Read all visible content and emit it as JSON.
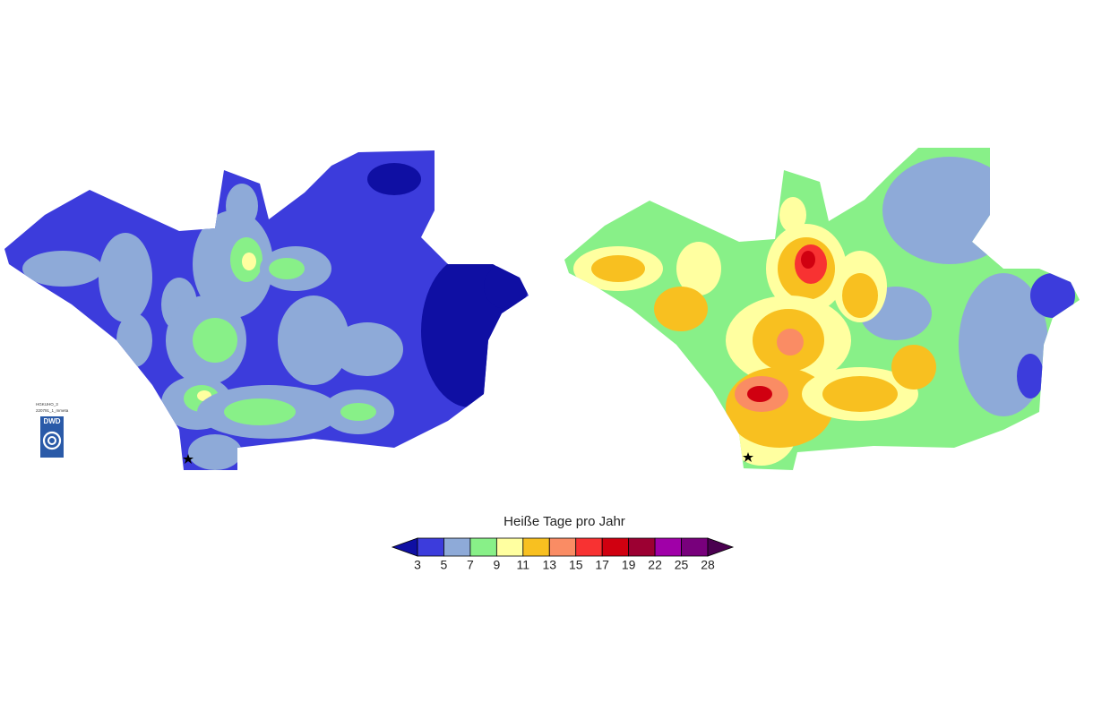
{
  "legend": {
    "title": "Heiße Tage pro Jahr",
    "ticks": [
      3,
      5,
      7,
      9,
      11,
      13,
      15,
      17,
      19,
      22,
      25,
      28
    ],
    "colors": [
      "#0f0fa3",
      "#3c3cdc",
      "#8eaad8",
      "#88f088",
      "#ffffa0",
      "#f8c020",
      "#fa8c64",
      "#f83232",
      "#d00010",
      "#9c0032",
      "#a000a8",
      "#78007c",
      "#4a0050"
    ]
  },
  "map_label": {
    "lines": [
      "HGKUHO_3",
      "220791_1_mmeta"
    ]
  },
  "logo": {
    "text": "DWD"
  }
}
